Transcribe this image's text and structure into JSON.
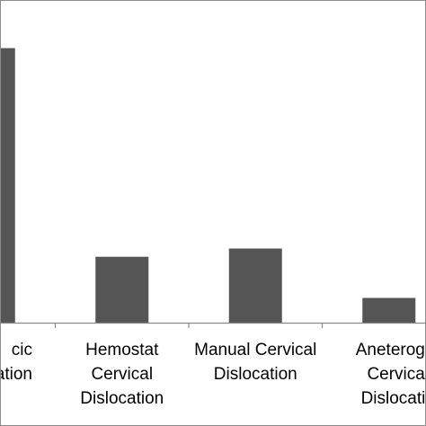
{
  "chart_data": {
    "type": "bar",
    "title": "",
    "xlabel": "",
    "ylabel": "",
    "categories": [
      {
        "label": "…cic …ation",
        "lines": [
          "cic",
          "ation"
        ]
      },
      {
        "label": "Hemostat Cervical Dislocation",
        "lines": [
          "Hemostat",
          "Cervical",
          "Dislocation"
        ]
      },
      {
        "label": "Manual Cervical Dislocation",
        "lines": [
          "Manual Cervical",
          "Dislocation"
        ]
      },
      {
        "label": "Aneterogra… Cervical Dislocatio…",
        "lines": [
          "Aneterogra",
          "Cervical",
          "Dislocatio"
        ]
      }
    ],
    "values": [
      100,
      24,
      27,
      9
    ],
    "ylim": [
      0,
      110
    ],
    "grid": false,
    "legend": "none",
    "colors": {
      "bar": "#555555",
      "axis": "#888888",
      "border": "#8c8c8c",
      "text": "#000000"
    }
  }
}
